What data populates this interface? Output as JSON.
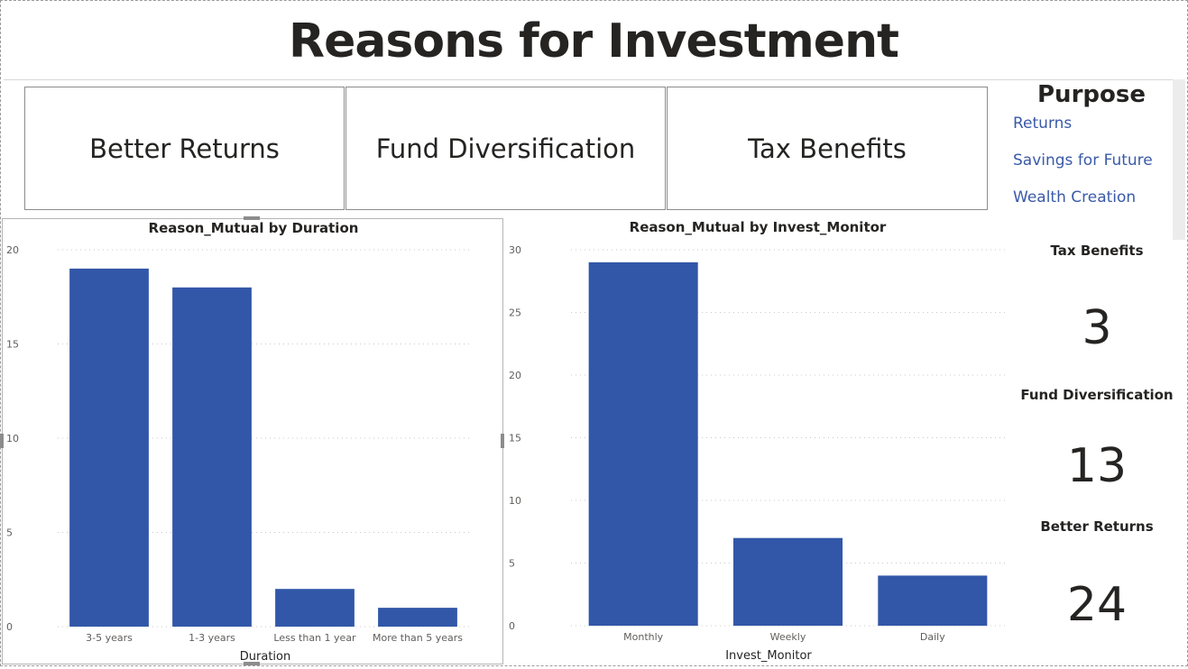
{
  "title": "Reasons for Investment",
  "cards": [
    "Better Returns",
    "Fund Diversification",
    "Tax Benefits"
  ],
  "slicer": {
    "title": "Purpose",
    "items": [
      "Returns",
      "Savings for Future",
      "Wealth Creation"
    ]
  },
  "kpis": [
    {
      "label": "Tax Benefits",
      "value": "3"
    },
    {
      "label": "Fund Diversification",
      "value": "13"
    },
    {
      "label": "Better Returns",
      "value": "24"
    }
  ],
  "colors": {
    "bar": "#3257a8",
    "slicer_text": "#3a5aa8",
    "grid": "#c8c8c8"
  },
  "chart_data": [
    {
      "type": "bar",
      "title": "Reason_Mutual by Duration",
      "xlabel": "Duration",
      "ylabel": "",
      "categories": [
        "3-5 years",
        "1-3 years",
        "Less than 1 year",
        "More than 5 years"
      ],
      "values": [
        19,
        18,
        2,
        1
      ],
      "ylim": [
        0,
        20
      ],
      "yticks": [
        0,
        5,
        10,
        15,
        20
      ],
      "grid": true
    },
    {
      "type": "bar",
      "title": "Reason_Mutual by Invest_Monitor",
      "xlabel": "Invest_Monitor",
      "ylabel": "",
      "categories": [
        "Monthly",
        "Weekly",
        "Daily"
      ],
      "values": [
        29,
        7,
        4
      ],
      "ylim": [
        0,
        30
      ],
      "yticks": [
        0,
        5,
        10,
        15,
        20,
        25,
        30
      ],
      "grid": true
    }
  ]
}
